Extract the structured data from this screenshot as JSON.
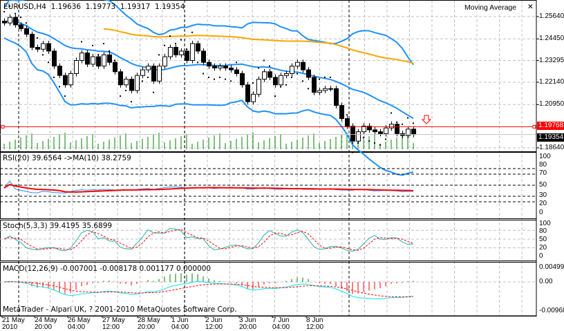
{
  "header": {
    "symbol": "EURUSD,H4",
    "open": "1.19636",
    "high": "1.19773",
    "low": "1.19317",
    "close": "1.19354"
  },
  "indicator_window": {
    "title": "Moving Average",
    "close_icon": "close-icon"
  },
  "price_axis": {
    "labels": [
      "1.25640",
      "1.24450",
      "1.23295",
      "1.22140",
      "1.20950",
      "1.18640"
    ],
    "values": [
      1.2564,
      1.2445,
      1.23295,
      1.2214,
      1.2095,
      1.1864
    ],
    "alert_price": "1.19768",
    "bid_price": "1.19354",
    "alert_value": 1.19768,
    "bid_value": 1.19354
  },
  "rsi": {
    "label": "RSI(20) 39.6564  ->MA(10) 38.2759",
    "levels": [
      "100",
      "80",
      "70",
      "50",
      "30",
      "20",
      "0"
    ]
  },
  "stoch": {
    "label": "Stoch(5,3,3) 39.4195 35.6899",
    "levels": [
      "100",
      "80",
      "50",
      "20",
      "0"
    ]
  },
  "macd": {
    "label": "MACD(12,26,9) -0.007001 -0.008178 0.001177 0.000000",
    "levels": [
      "0.004990",
      "0.00",
      "-0.00968"
    ]
  },
  "copyright": "MetaTrader - Alpari UK, ? 2001-2010 MetaQuotes Software Corp.",
  "time_axis": [
    "21 May 2010",
    "24 May 20:00",
    "26 May 04:00",
    "27 May 12:00",
    "28 May 20:00",
    "1 Jun 04:00",
    "2 Jun 12:00",
    "3 Jun 20:00",
    "7 Jun 04:00",
    "8 Jun 12:00"
  ],
  "colors": {
    "bull_candle": "#ffffff",
    "bear_candle": "#000000",
    "bollinger": "#1e90ff",
    "moving_average": "#ffa500",
    "alert_line": "#ff0000",
    "volume": "#008000",
    "rsi_ma": "#ff0000",
    "signal": "#ff0000",
    "macd_main": "#00e5ee",
    "histogram_up": "#008000",
    "histogram_down": "#ff0000"
  },
  "chart_data": {
    "type": "candlestick",
    "symbol": "EURUSD",
    "timeframe": "H4",
    "closes": [
      1.253,
      1.256,
      1.252,
      1.25,
      1.247,
      1.24,
      1.239,
      1.242,
      1.238,
      1.23,
      1.225,
      1.22,
      1.226,
      1.233,
      1.237,
      1.231,
      1.235,
      1.23,
      1.236,
      1.232,
      1.227,
      1.22,
      1.223,
      1.217,
      1.225,
      1.228,
      1.23,
      1.222,
      1.23,
      1.235,
      1.24,
      1.236,
      1.238,
      1.233,
      1.242,
      1.238,
      1.232,
      1.23,
      1.229,
      1.23,
      1.229,
      1.228,
      1.226,
      1.22,
      1.211,
      1.215,
      1.223,
      1.227,
      1.224,
      1.22,
      1.225,
      1.226,
      1.23,
      1.232,
      1.228,
      1.224,
      1.216,
      1.217,
      1.218,
      1.218,
      1.209,
      1.202,
      1.198,
      1.19,
      1.195,
      1.198,
      1.196,
      1.195,
      1.194,
      1.197,
      1.199,
      1.194,
      1.193,
      1.1964,
      1.19354
    ],
    "ylim": [
      1.185,
      1.26
    ]
  }
}
